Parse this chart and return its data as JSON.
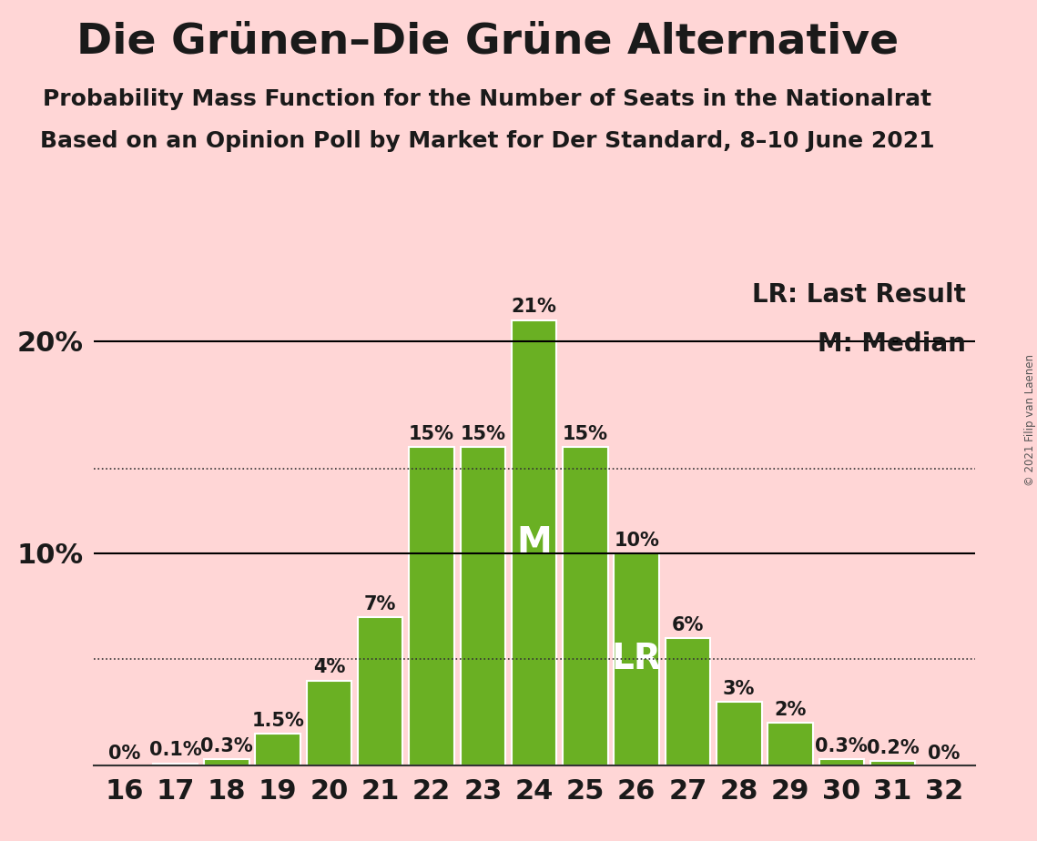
{
  "title": "Die Grünen–Die Grüne Alternative",
  "subtitle1": "Probability Mass Function for the Number of Seats in the Nationalrat",
  "subtitle2": "Based on an Opinion Poll by Market for Der Standard, 8–10 June 2021",
  "copyright": "© 2021 Filip van Laenen",
  "legend_lr": "LR: Last Result",
  "legend_m": "M: Median",
  "background_color": "#ffd6d6",
  "bar_color": "#6ab023",
  "bar_edge_color": "#ffffff",
  "categories": [
    16,
    17,
    18,
    19,
    20,
    21,
    22,
    23,
    24,
    25,
    26,
    27,
    28,
    29,
    30,
    31,
    32
  ],
  "values": [
    0.0,
    0.1,
    0.3,
    1.5,
    4.0,
    7.0,
    15.0,
    15.0,
    21.0,
    15.0,
    10.0,
    6.0,
    3.0,
    2.0,
    0.3,
    0.2,
    0.0
  ],
  "labels": [
    "0%",
    "0.1%",
    "0.3%",
    "1.5%",
    "4%",
    "7%",
    "15%",
    "15%",
    "21%",
    "15%",
    "10%",
    "6%",
    "3%",
    "2%",
    "0.3%",
    "0.2%",
    "0%"
  ],
  "median_seat": 24,
  "lr_seat": 26,
  "dotted_line1": 5.0,
  "dotted_line2": 14.0,
  "solid_line1": 10.0,
  "solid_line2": 20.0,
  "ylim": [
    0,
    23
  ],
  "title_fontsize": 34,
  "subtitle_fontsize": 18,
  "axis_label_fontsize": 22,
  "bar_label_fontsize": 15,
  "legend_fontsize": 20,
  "annotation_fontsize": 28
}
